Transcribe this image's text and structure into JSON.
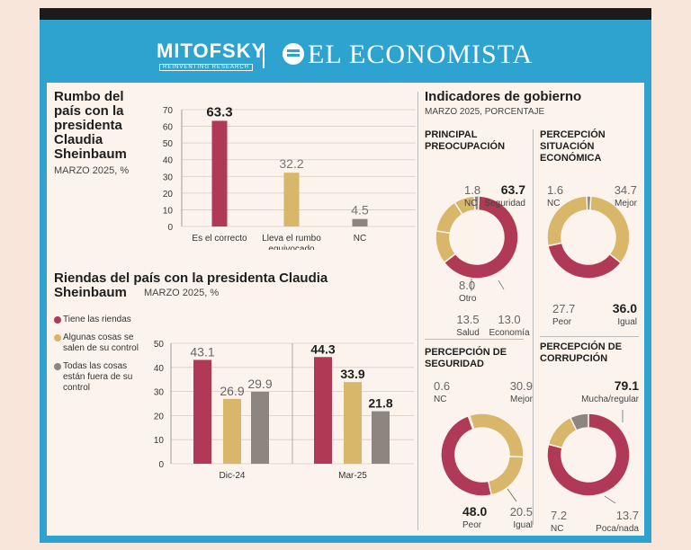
{
  "header": {
    "logo_left": "MITOFSKY",
    "logo_left_tagline": "REINVENTING RESEARCH",
    "logo_right": "EL ECONOMISTA"
  },
  "colors": {
    "red": "#b03a55",
    "gold": "#d8b66a",
    "gray": "#8d8580"
  },
  "rumbo": {
    "title": "Rumbo del país con la presidenta Claudia Sheinbaum",
    "subtitle": "MARZO 2025, %"
  },
  "riendas": {
    "title": "Riendas del país con la presidenta Claudia Sheinbaum",
    "subtitle": "MARZO 2025, %"
  },
  "indicadores": {
    "title": "Indicadores de gobierno",
    "subtitle": "MARZO 2025, PORCENTAJE"
  },
  "chart_data": [
    {
      "type": "bar",
      "title": "Rumbo del país con la presidenta Claudia Sheinbaum",
      "categories": [
        "Es el correcto",
        "Lleva el rumbo equivocado",
        "NC"
      ],
      "values": [
        63.3,
        32.2,
        4.5
      ],
      "value_labels": [
        "63.3",
        "32.2",
        "4.5"
      ],
      "yticks": [
        "0",
        "10",
        "20",
        "30",
        "40",
        "50",
        "60",
        "70"
      ],
      "ylim": [
        0,
        70
      ]
    },
    {
      "type": "bar",
      "title": "Riendas del país con la presidenta Claudia Sheinbaum",
      "categories": [
        "Dic-24",
        "Mar-25"
      ],
      "series": [
        {
          "name": "Tiene las riendas",
          "values": [
            43.1,
            44.3
          ],
          "labels": [
            "43.1",
            "44.3"
          ]
        },
        {
          "name": "Algunas cosas se salen de su control",
          "values": [
            26.9,
            33.9
          ],
          "labels": [
            "26.9",
            "33.9"
          ]
        },
        {
          "name": "Todas las cosas están fuera de su control",
          "values": [
            29.9,
            21.8
          ],
          "labels": [
            "29.9",
            "21.8"
          ]
        }
      ],
      "yticks": [
        "0",
        "10",
        "20",
        "30",
        "40",
        "50"
      ],
      "ylim": [
        0,
        50
      ]
    },
    {
      "type": "pie",
      "title": "PRINCIPAL PREOCUPACIÓN",
      "slices": [
        {
          "label": "Seguridad",
          "value": 63.7,
          "text": "63.7"
        },
        {
          "label": "Economía",
          "value": 13.0,
          "text": "13.0"
        },
        {
          "label": "Salud",
          "value": 13.5,
          "text": "13.5"
        },
        {
          "label": "Otro",
          "value": 8.0,
          "text": "8.0"
        },
        {
          "label": "NC",
          "value": 1.8,
          "text": "1.8"
        }
      ]
    },
    {
      "type": "pie",
      "title": "PERCEPCIÓN SITUACIÓN ECONÓMICA",
      "slices": [
        {
          "label": "Mejor",
          "value": 34.7,
          "text": "34.7"
        },
        {
          "label": "Igual",
          "value": 36.0,
          "text": "36.0"
        },
        {
          "label": "Peor",
          "value": 27.7,
          "text": "27.7"
        },
        {
          "label": "NC",
          "value": 1.6,
          "text": "1.6"
        }
      ]
    },
    {
      "type": "pie",
      "title": "PERCEPCIÓN DE SEGURIDAD",
      "slices": [
        {
          "label": "Mejor",
          "value": 30.9,
          "text": "30.9"
        },
        {
          "label": "Igual",
          "value": 20.5,
          "text": "20.5"
        },
        {
          "label": "Peor",
          "value": 48.0,
          "text": "48.0"
        },
        {
          "label": "NC",
          "value": 0.6,
          "text": "0.6"
        }
      ]
    },
    {
      "type": "pie",
      "title": "PERCEPCIÓN DE CORRUPCIÓN",
      "slices": [
        {
          "label": "Mucha/regular",
          "value": 79.1,
          "text": "79.1"
        },
        {
          "label": "Poca/nada",
          "value": 13.7,
          "text": "13.7"
        },
        {
          "label": "NC",
          "value": 7.2,
          "text": "7.2"
        }
      ]
    }
  ]
}
